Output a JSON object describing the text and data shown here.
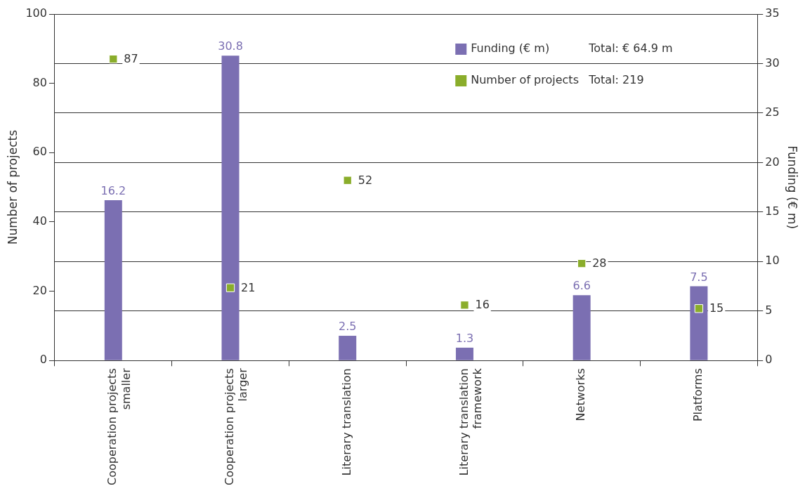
{
  "chart_data": {
    "type": "bar",
    "categories": [
      "Cooperation projects smaller",
      "Cooperation projects larger",
      "Literary translation",
      "Literary translation framework",
      "Networks",
      "Platforms"
    ],
    "series": [
      {
        "name": "Funding (€ m)",
        "axis": "y2",
        "color": "#7b6fb2",
        "values": [
          16.2,
          30.8,
          2.5,
          1.3,
          6.6,
          7.5
        ]
      },
      {
        "name": "Number of projects",
        "type": "scatter",
        "marker": "square",
        "color": "#8aad2b",
        "x": [
          "Cooperation projects smaller",
          "Cooperation projects larger",
          "Literary translation",
          "Literary translation framework",
          "Networks",
          "Platforms"
        ],
        "values": [
          87,
          21,
          52,
          16,
          28,
          15
        ]
      }
    ],
    "ylabel": "Number of projects",
    "y2label": "Funding (€ m)",
    "ylim": [
      0,
      100
    ],
    "yticks": [
      0,
      20,
      40,
      60,
      80,
      100
    ],
    "y2lim": [
      0,
      35
    ],
    "y2ticks": [
      0,
      5,
      10,
      15,
      20,
      25,
      30,
      35
    ],
    "grid": true,
    "legend": "top right",
    "data_labels": true,
    "annotations": [
      "Total: € 64.9 m",
      "Total: 219"
    ]
  }
}
